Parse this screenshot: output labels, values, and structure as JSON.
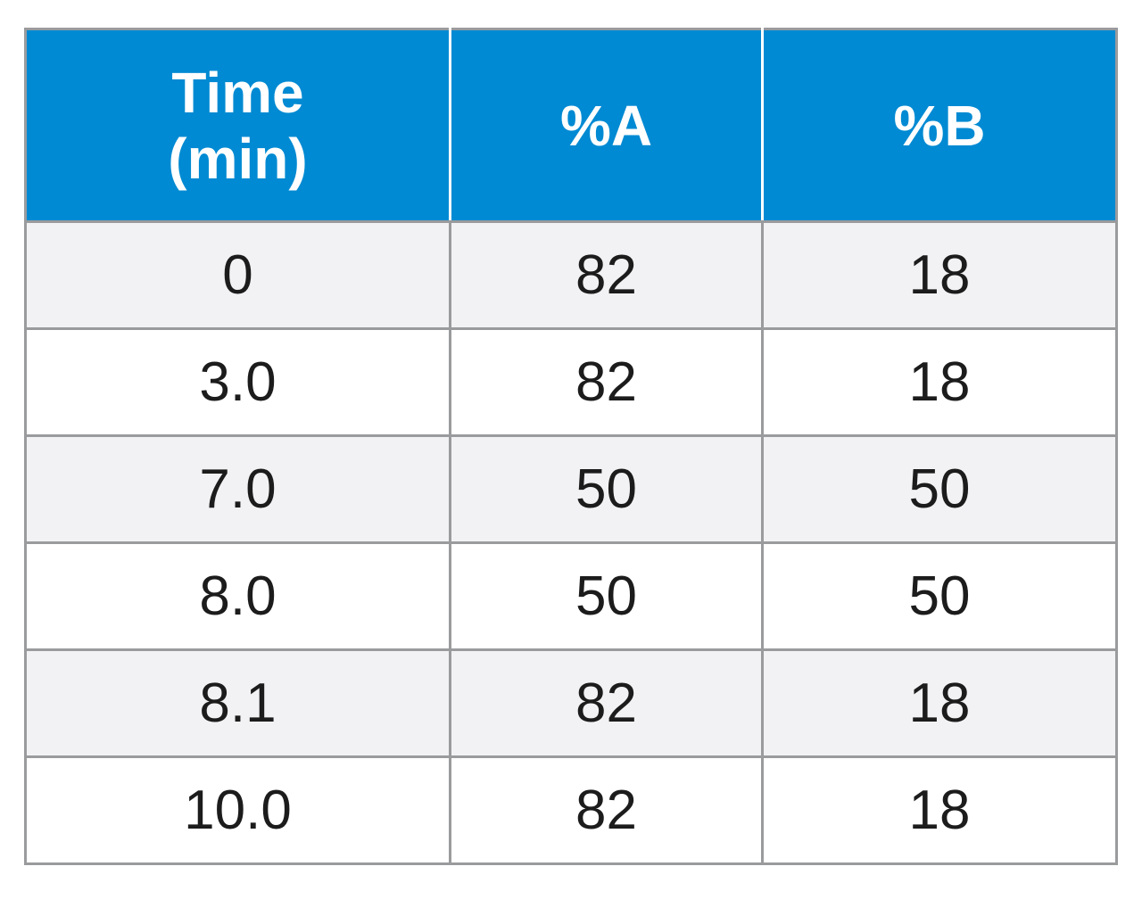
{
  "table": {
    "headers": [
      "Time\n(min)",
      "%A",
      "%B"
    ],
    "rows": [
      [
        "0",
        "82",
        "18"
      ],
      [
        "3.0",
        "82",
        "18"
      ],
      [
        "7.0",
        "50",
        "50"
      ],
      [
        "8.0",
        "50",
        "50"
      ],
      [
        "8.1",
        "82",
        "18"
      ],
      [
        "10.0",
        "82",
        "18"
      ]
    ]
  },
  "colors": {
    "header_bg": "#008ad3",
    "header_text": "#ffffff",
    "row_alt_bg": "#f2f2f4",
    "row_bg": "#ffffff",
    "border": "#9a9b9d",
    "cell_text": "#1c1c1c"
  }
}
